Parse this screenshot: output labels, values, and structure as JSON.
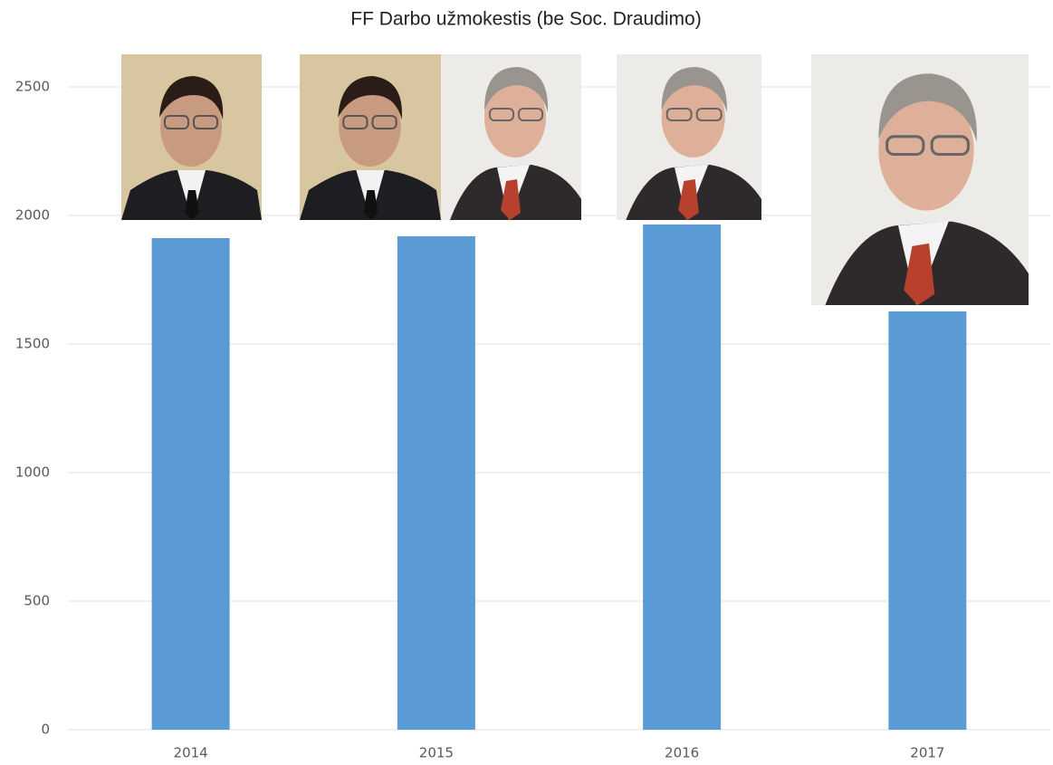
{
  "chart_data": {
    "type": "bar",
    "title": "FF Darbo užmokestis (be Soc. Draudimo)",
    "categories": [
      "2014",
      "2015",
      "2016",
      "2017"
    ],
    "values": [
      1912,
      1919,
      1965,
      1627
    ],
    "color": "#5b9bd5",
    "ylim": [
      0,
      2500
    ],
    "yticks": [
      0,
      500,
      1000,
      1500,
      2000,
      2500
    ],
    "grid": true
  }
}
